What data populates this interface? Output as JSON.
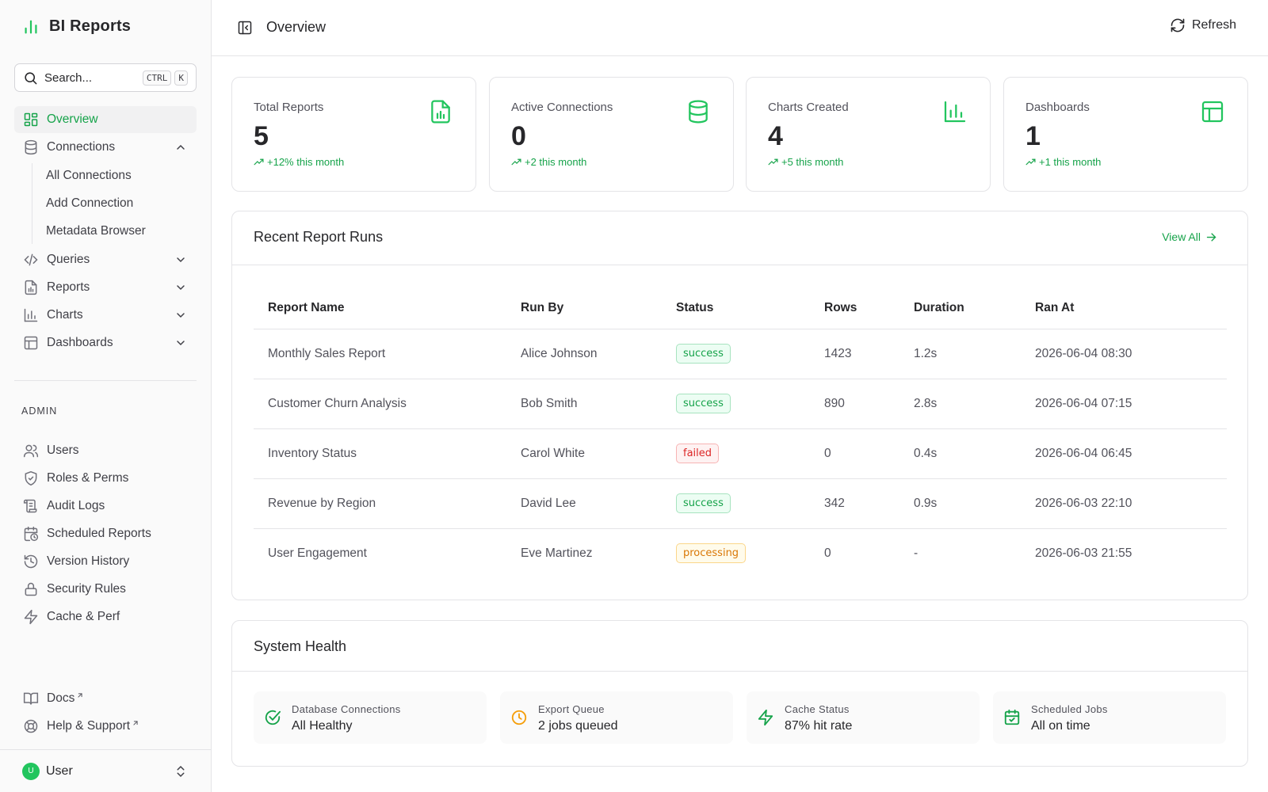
{
  "app": {
    "title": "BI Reports"
  },
  "colors": {
    "accent": "#16a34a",
    "brand": "#22c55e",
    "failed": "#dc2626",
    "processing": "#d97706"
  },
  "search": {
    "placeholder": "Search...",
    "shortcut": [
      "CTRL",
      "K"
    ]
  },
  "sidebar": {
    "nav": [
      {
        "label": "Overview",
        "icon": "layout-dashboard-icon",
        "active": true
      },
      {
        "label": "Connections",
        "icon": "database-icon",
        "expanded": true,
        "children": [
          "All Connections",
          "Add Connection",
          "Metadata Browser"
        ]
      },
      {
        "label": "Queries",
        "icon": "code-icon"
      },
      {
        "label": "Reports",
        "icon": "file-chart-icon"
      },
      {
        "label": "Charts",
        "icon": "bar-chart-icon"
      },
      {
        "label": "Dashboards",
        "icon": "layout-icon"
      }
    ],
    "admin_label": "ADMIN",
    "admin": [
      {
        "label": "Users",
        "icon": "users-icon"
      },
      {
        "label": "Roles & Perms",
        "icon": "shield-icon"
      },
      {
        "label": "Audit Logs",
        "icon": "scroll-icon"
      },
      {
        "label": "Scheduled Reports",
        "icon": "calendar-clock-icon"
      },
      {
        "label": "Version History",
        "icon": "history-icon"
      },
      {
        "label": "Security Rules",
        "icon": "lock-icon"
      },
      {
        "label": "Cache & Perf",
        "icon": "zap-icon"
      }
    ],
    "footer_links": [
      {
        "label": "Docs",
        "icon": "book-icon"
      },
      {
        "label": "Help & Support",
        "icon": "life-buoy-icon"
      }
    ],
    "user": {
      "initial": "U",
      "name": "User"
    }
  },
  "header": {
    "title": "Overview",
    "refresh_label": "Refresh"
  },
  "stats": [
    {
      "label": "Total Reports",
      "value": "5",
      "trend": "+12% this month",
      "icon": "file-chart-icon"
    },
    {
      "label": "Active Connections",
      "value": "0",
      "trend": "+2 this month",
      "icon": "database-icon"
    },
    {
      "label": "Charts Created",
      "value": "4",
      "trend": "+5 this month",
      "icon": "bar-chart-icon"
    },
    {
      "label": "Dashboards",
      "value": "1",
      "trend": "+1 this month",
      "icon": "layout-icon"
    }
  ],
  "recent_runs": {
    "title": "Recent Report Runs",
    "view_all": "View All",
    "columns": [
      "Report Name",
      "Run By",
      "Status",
      "Rows",
      "Duration",
      "Ran At"
    ],
    "rows": [
      [
        "Monthly Sales Report",
        "Alice Johnson",
        "success",
        "1423",
        "1.2s",
        "2026-06-04 08:30"
      ],
      [
        "Customer Churn Analysis",
        "Bob Smith",
        "success",
        "890",
        "2.8s",
        "2026-06-04 07:15"
      ],
      [
        "Inventory Status",
        "Carol White",
        "failed",
        "0",
        "0.4s",
        "2026-06-04 06:45"
      ],
      [
        "Revenue by Region",
        "David Lee",
        "success",
        "342",
        "0.9s",
        "2026-06-03 22:10"
      ],
      [
        "User Engagement",
        "Eve Martinez",
        "processing",
        "0",
        "-",
        "2026-06-03 21:55"
      ]
    ]
  },
  "system_health": {
    "title": "System Health",
    "items": [
      {
        "label": "Database Connections",
        "value": "All Healthy",
        "icon": "check-circle-icon"
      },
      {
        "label": "Export Queue",
        "value": "2 jobs queued",
        "icon": "clock-icon"
      },
      {
        "label": "Cache Status",
        "value": "87% hit rate",
        "icon": "zap-icon"
      },
      {
        "label": "Scheduled Jobs",
        "value": "All on time",
        "icon": "calendar-check-icon"
      }
    ]
  }
}
